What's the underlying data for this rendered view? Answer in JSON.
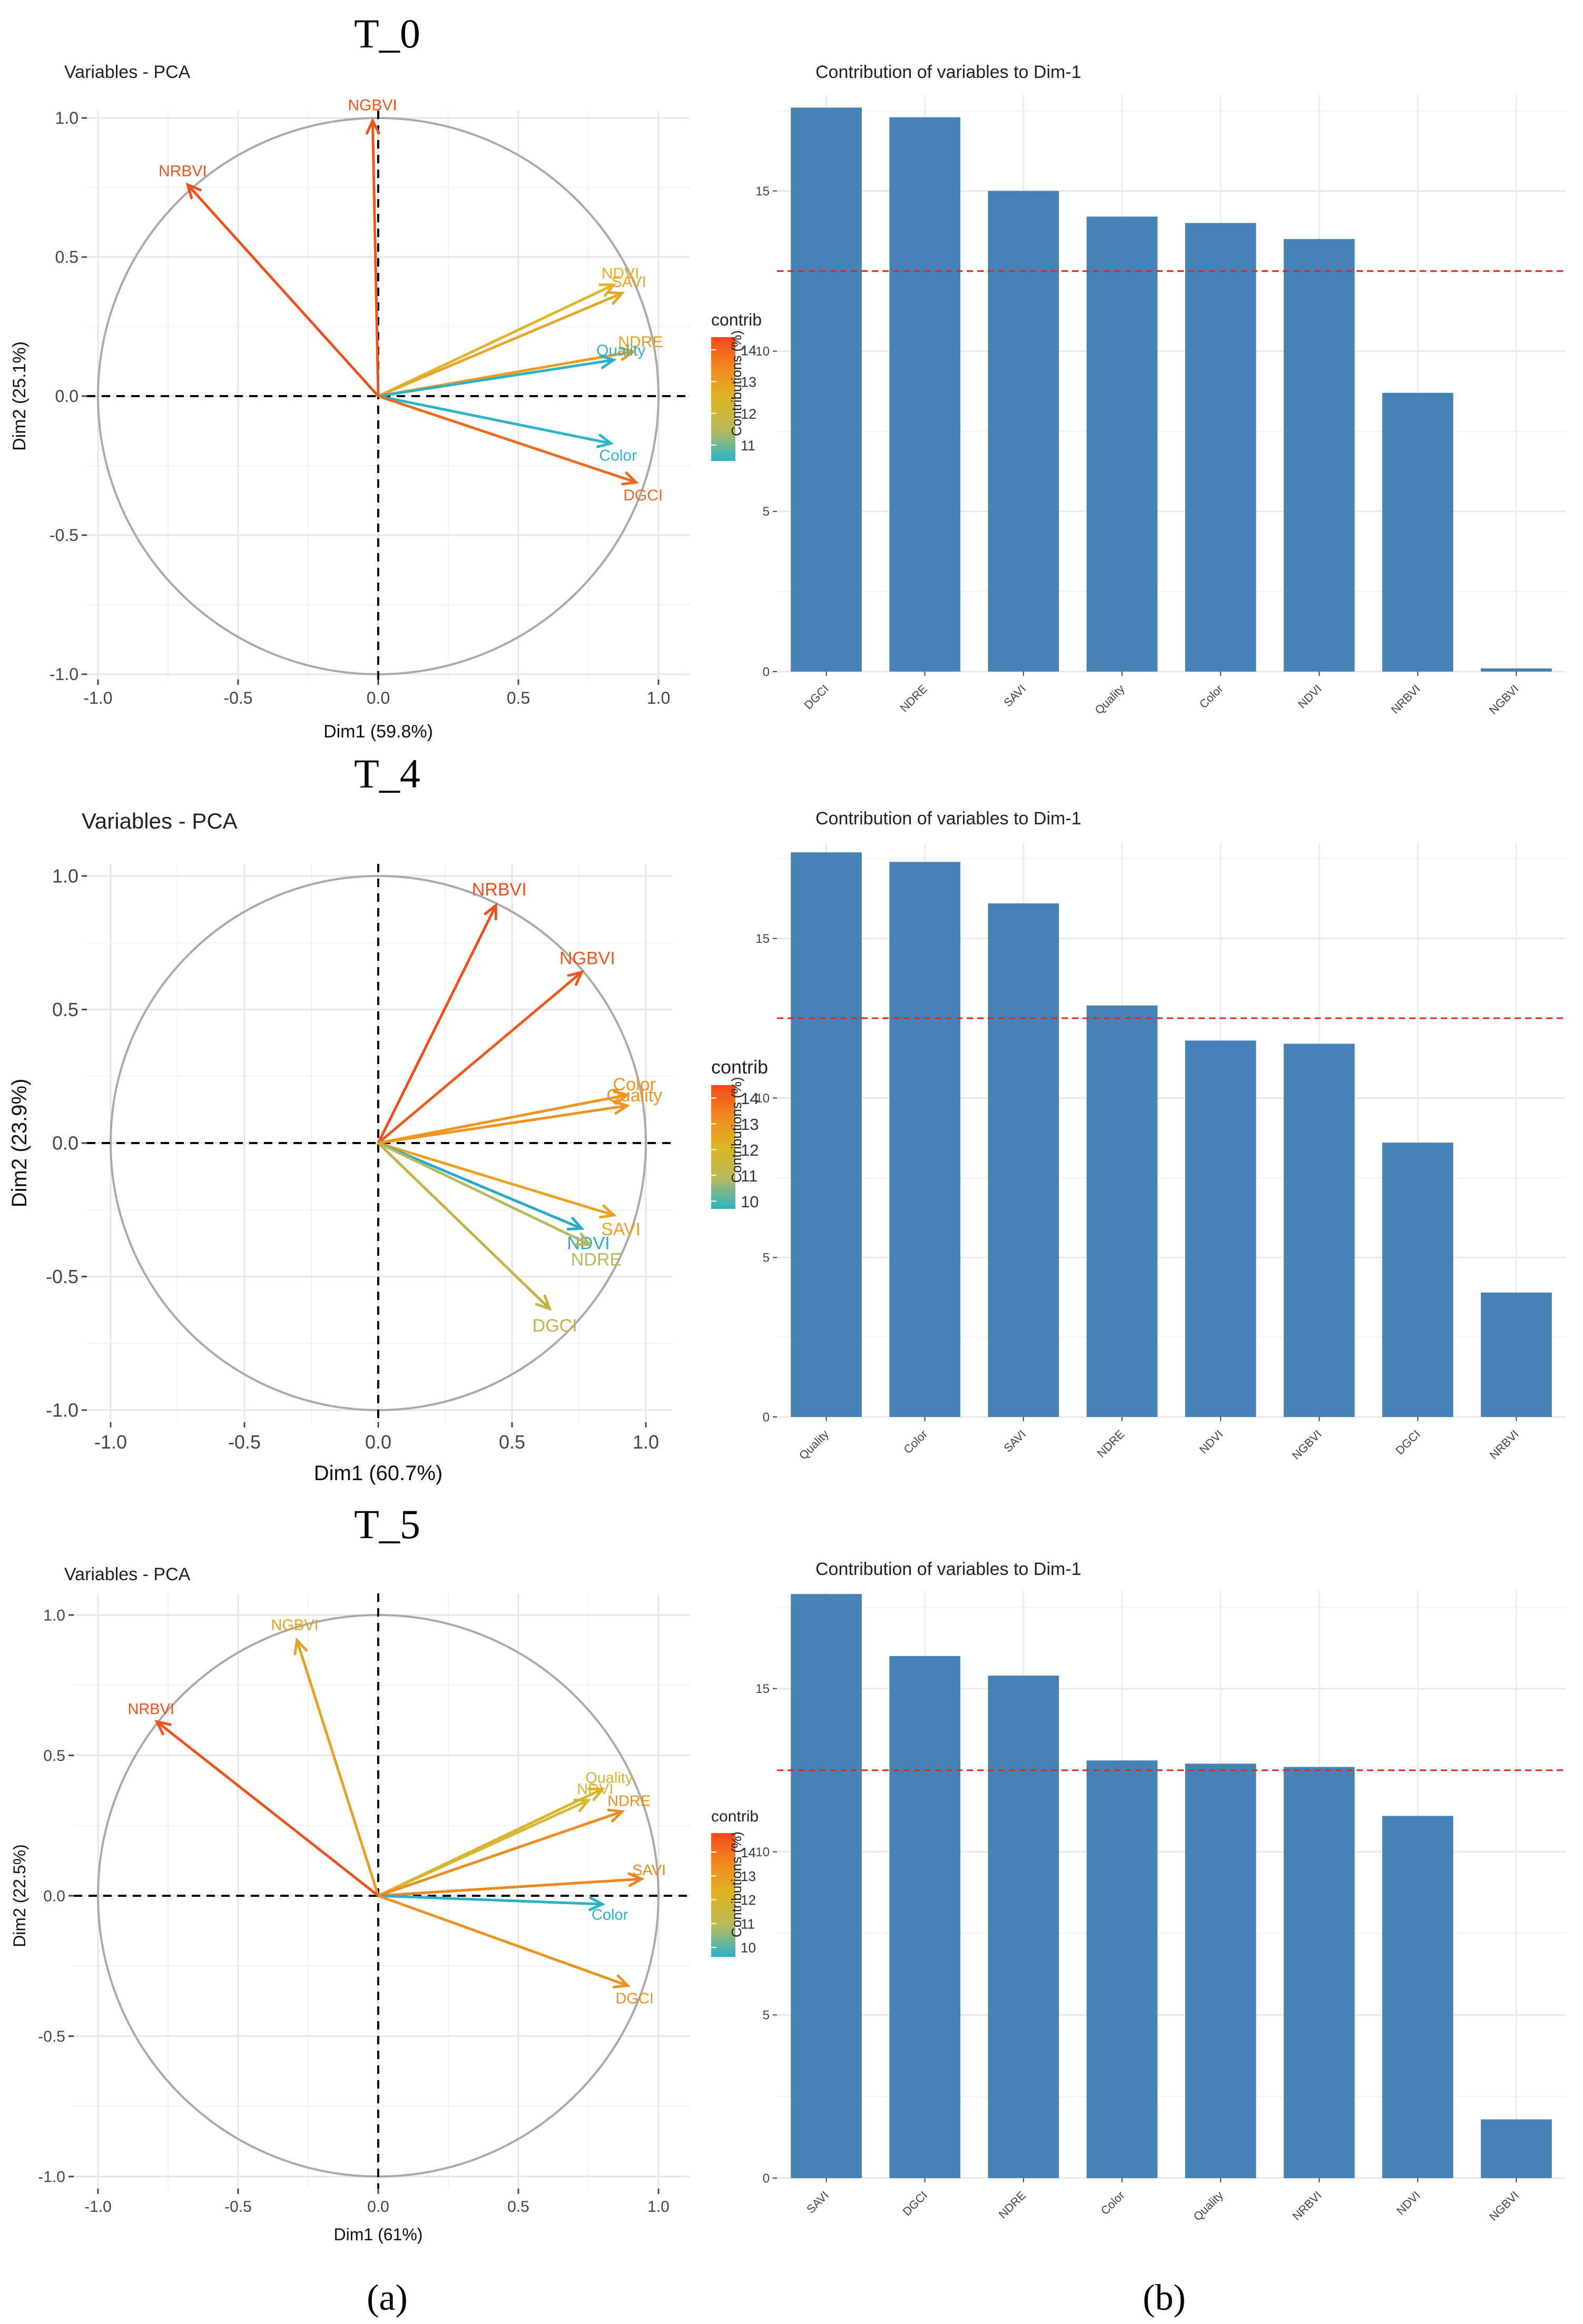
{
  "figure": {
    "column_labels": [
      "(a)",
      "(b)"
    ]
  },
  "chart_data": [
    {
      "type": "scatter",
      "chart_kind": "pca-correlation-circle",
      "panel_label": "T_0",
      "title": "Variables - PCA",
      "xlabel": "Dim1 (59.8%)",
      "ylabel": "Dim2 (25.1%)",
      "xlim": [
        -1.0,
        1.0
      ],
      "ylim": [
        -1.0,
        1.0
      ],
      "xticks": [
        "-1.0",
        "-0.5",
        "0.0",
        "0.5",
        "1.0"
      ],
      "yticks": [
        "-1.0",
        "-0.5",
        "0.0",
        "0.5",
        "1.0"
      ],
      "legend": {
        "title": "contrib",
        "ticks": [
          "14",
          "13",
          "12",
          "11"
        ],
        "min": 10.5,
        "max": 14.4,
        "colors": [
          "#f7471c",
          "#f08a1e",
          "#dcb524",
          "#b9b95c",
          "#29b3c7"
        ]
      },
      "vectors": [
        {
          "name": "NGBVI",
          "x": -0.02,
          "y": 0.99,
          "color": "#ef561e"
        },
        {
          "name": "NRBVI",
          "x": -0.68,
          "y": 0.76,
          "color": "#f0501c"
        },
        {
          "name": "NDVI",
          "x": 0.84,
          "y": 0.4,
          "color": "#dfb42a"
        },
        {
          "name": "SAVI",
          "x": 0.87,
          "y": 0.37,
          "color": "#e6a62a"
        },
        {
          "name": "NDRE",
          "x": 0.91,
          "y": 0.16,
          "color": "#eb9d22"
        },
        {
          "name": "Quality",
          "x": 0.84,
          "y": 0.13,
          "color": "#2fb1c2"
        },
        {
          "name": "Color",
          "x": 0.83,
          "y": -0.17,
          "color": "#2db4c6"
        },
        {
          "name": "DGCI",
          "x": 0.92,
          "y": -0.31,
          "color": "#ef6a1f"
        }
      ]
    },
    {
      "type": "bar",
      "panel_label": "T_0",
      "title": "Contribution of variables to Dim-1",
      "xlabel": "",
      "ylabel": "Contributions (%)",
      "ylim": [
        0,
        18
      ],
      "yticks": [
        "0",
        "5",
        "10",
        "15"
      ],
      "reference_line": 12.5,
      "categories": [
        "DGCI",
        "NDRE",
        "SAVI",
        "Quality",
        "Color",
        "NDVI",
        "NRBVI",
        "NGBVI"
      ],
      "values": [
        17.6,
        17.3,
        15.0,
        14.2,
        14.0,
        13.5,
        8.7,
        0.1
      ]
    },
    {
      "type": "scatter",
      "chart_kind": "pca-correlation-circle",
      "panel_label": "T_4",
      "title": "Variables - PCA",
      "xlabel": "Dim1 (60.7%)",
      "ylabel": "Dim2 (23.9%)",
      "xlim": [
        -1.0,
        1.0
      ],
      "ylim": [
        -1.0,
        1.0
      ],
      "xticks": [
        "-1.0",
        "-0.5",
        "0.0",
        "0.5",
        "1.0"
      ],
      "yticks": [
        "-1.0",
        "-0.5",
        "0.0",
        "0.5",
        "1.0"
      ],
      "legend": {
        "title": "contrib",
        "ticks": [
          "14",
          "13",
          "12",
          "11",
          "10"
        ],
        "min": 9.7,
        "max": 14.5,
        "colors": [
          "#f7471c",
          "#f08a1e",
          "#dcb524",
          "#b9b95c",
          "#29b3c7"
        ]
      },
      "vectors": [
        {
          "name": "NRBVI",
          "x": 0.44,
          "y": 0.89,
          "color": "#f04f1c"
        },
        {
          "name": "NGBVI",
          "x": 0.76,
          "y": 0.64,
          "color": "#ee5a1d"
        },
        {
          "name": "Color",
          "x": 0.93,
          "y": 0.18,
          "color": "#ee9420"
        },
        {
          "name": "Quality",
          "x": 0.93,
          "y": 0.14,
          "color": "#ef9420"
        },
        {
          "name": "SAVI",
          "x": 0.88,
          "y": -0.27,
          "color": "#eda121"
        },
        {
          "name": "NDVI",
          "x": 0.76,
          "y": -0.32,
          "color": "#27abc4"
        },
        {
          "name": "NDRE",
          "x": 0.79,
          "y": -0.38,
          "color": "#b7b85f"
        },
        {
          "name": "DGCI",
          "x": 0.64,
          "y": -0.62,
          "color": "#c5b145"
        }
      ]
    },
    {
      "type": "bar",
      "panel_label": "T_4",
      "title": "Contribution of variables to Dim-1",
      "xlabel": "",
      "ylabel": "Contributions (%)",
      "ylim": [
        0,
        18
      ],
      "yticks": [
        "0",
        "5",
        "10",
        "15"
      ],
      "reference_line": 12.5,
      "categories": [
        "Quality",
        "Color",
        "SAVI",
        "NDRE",
        "NDVI",
        "NGBVI",
        "DGCI",
        "NRBVI"
      ],
      "values": [
        17.7,
        17.4,
        16.1,
        12.9,
        11.8,
        11.7,
        8.6,
        3.9
      ]
    },
    {
      "type": "scatter",
      "chart_kind": "pca-correlation-circle",
      "panel_label": "T_5",
      "title": "Variables - PCA",
      "xlabel": "Dim1 (61%)",
      "ylabel": "Dim2 (22.5%)",
      "xlim": [
        -1.0,
        1.0
      ],
      "ylim": [
        -1.0,
        1.0
      ],
      "xticks": [
        "-1.0",
        "-0.5",
        "0.0",
        "0.5",
        "1.0"
      ],
      "yticks": [
        "-1.0",
        "-0.5",
        "0.0",
        "0.5",
        "1.0"
      ],
      "legend": {
        "title": "contrib",
        "ticks": [
          "14",
          "13",
          "12",
          "11",
          "10"
        ],
        "min": 9.6,
        "max": 14.8,
        "colors": [
          "#f7471c",
          "#f08a1e",
          "#dcb524",
          "#b9b95c",
          "#29b3c7"
        ]
      },
      "vectors": [
        {
          "name": "NGBVI",
          "x": -0.29,
          "y": 0.91,
          "color": "#e5a126"
        },
        {
          "name": "NRBVI",
          "x": -0.79,
          "y": 0.62,
          "color": "#f1521c"
        },
        {
          "name": "NDVI",
          "x": 0.75,
          "y": 0.34,
          "color": "#d8b737"
        },
        {
          "name": "Quality",
          "x": 0.8,
          "y": 0.38,
          "color": "#dcb12b"
        },
        {
          "name": "NDRE",
          "x": 0.87,
          "y": 0.3,
          "color": "#eb8e22"
        },
        {
          "name": "SAVI",
          "x": 0.94,
          "y": 0.06,
          "color": "#ef8620"
        },
        {
          "name": "Color",
          "x": 0.8,
          "y": -0.03,
          "color": "#2cb0c5"
        },
        {
          "name": "DGCI",
          "x": 0.89,
          "y": -0.32,
          "color": "#ec9221"
        }
      ]
    },
    {
      "type": "bar",
      "panel_label": "T_5",
      "title": "Contribution of variables to Dim-1",
      "xlabel": "",
      "ylabel": "Contributions (%)",
      "ylim": [
        0,
        18
      ],
      "yticks": [
        "0",
        "5",
        "10",
        "15"
      ],
      "reference_line": 12.5,
      "categories": [
        "SAVI",
        "DGCI",
        "NDRE",
        "Color",
        "Quality",
        "NRBVI",
        "NDVI",
        "NGBVI"
      ],
      "values": [
        17.9,
        16.0,
        15.4,
        12.8,
        12.7,
        12.6,
        11.1,
        1.8
      ]
    }
  ]
}
